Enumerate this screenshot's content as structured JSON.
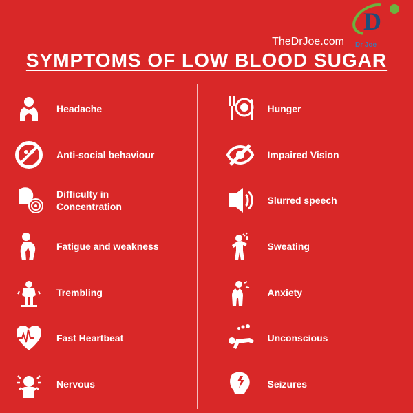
{
  "background_color": "#d92828",
  "text_color": "#ffffff",
  "logo": {
    "brand": "Dr Joe",
    "d_color": "#1e4d7b",
    "accent_color": "#6db33f"
  },
  "site_url": "TheDrJoe.com",
  "title": "SYMPTOMS OF LOW BLOOD SUGAR",
  "title_fontsize": 28,
  "label_fontsize": 14,
  "divider_color": "rgba(255,255,255,0.7)",
  "left_symptoms": [
    {
      "icon": "headache",
      "label": "Headache"
    },
    {
      "icon": "antisocial",
      "label": "Anti-social behaviour"
    },
    {
      "icon": "concentration",
      "label": "Difficulty in\nConcentration"
    },
    {
      "icon": "fatigue",
      "label": "Fatigue and weakness"
    },
    {
      "icon": "trembling",
      "label": "Trembling"
    },
    {
      "icon": "heartbeat",
      "label": "Fast Heartbeat"
    },
    {
      "icon": "nervous",
      "label": "Nervous"
    }
  ],
  "right_symptoms": [
    {
      "icon": "hunger",
      "label": "Hunger"
    },
    {
      "icon": "vision",
      "label": "Impaired Vision"
    },
    {
      "icon": "speech",
      "label": "Slurred speech"
    },
    {
      "icon": "sweating",
      "label": "Sweating"
    },
    {
      "icon": "anxiety",
      "label": "Anxiety"
    },
    {
      "icon": "unconscious",
      "label": "Unconscious"
    },
    {
      "icon": "seizures",
      "label": "Seizures"
    }
  ]
}
